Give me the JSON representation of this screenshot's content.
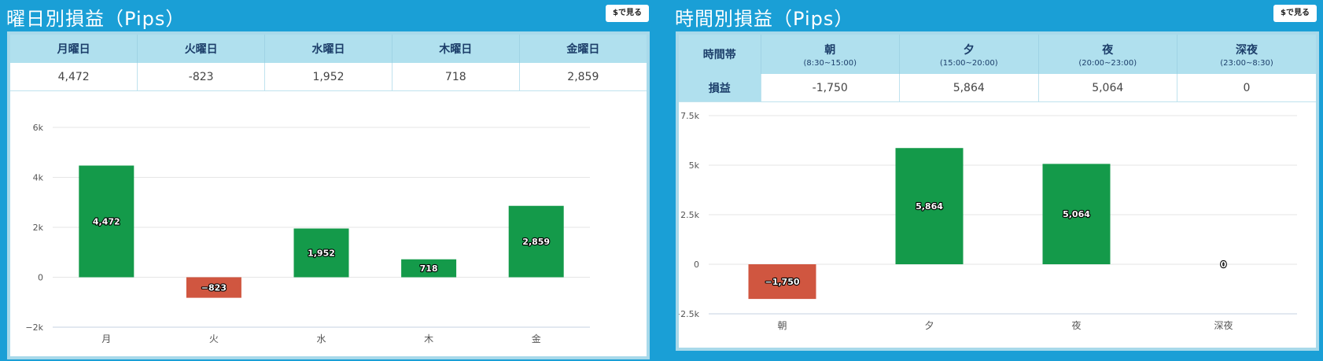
{
  "colors": {
    "positive": "#149a4a",
    "negative": "#d05640",
    "accent": "#1a9fd6"
  },
  "weekday": {
    "title": "曜日別損益（Pips）",
    "usd_button": "$で見る",
    "headers": [
      "月曜日",
      "火曜日",
      "水曜日",
      "木曜日",
      "金曜日"
    ],
    "values": [
      "4,472",
      "-823",
      "1,952",
      "718",
      "2,859"
    ]
  },
  "hourly": {
    "title": "時間別損益（Pips）",
    "usd_button": "$で見る",
    "corner_header": "時間帯",
    "row_label": "損益",
    "headers": [
      {
        "label": "朝",
        "range": "(8:30~15:00)"
      },
      {
        "label": "夕",
        "range": "(15:00~20:00)"
      },
      {
        "label": "夜",
        "range": "(20:00~23:00)"
      },
      {
        "label": "深夜",
        "range": "(23:00~8:30)"
      }
    ],
    "values": [
      "-1,750",
      "5,864",
      "5,064",
      "0"
    ]
  },
  "chart_data": [
    {
      "type": "bar",
      "categories": [
        "月",
        "火",
        "水",
        "木",
        "金"
      ],
      "values": [
        4472,
        -823,
        1952,
        718,
        2859
      ],
      "data_labels": [
        "4,472",
        "−823",
        "1,952",
        "718",
        "2,859"
      ],
      "yticks": [
        6000,
        4000,
        2000,
        0,
        -2000
      ],
      "ytick_labels": [
        "6k",
        "4k",
        "2k",
        "0",
        "−2k"
      ],
      "ylim": [
        -2000,
        6000
      ],
      "grid": true
    },
    {
      "type": "bar",
      "categories": [
        "朝",
        "夕",
        "夜",
        "深夜"
      ],
      "values": [
        -1750,
        5864,
        5064,
        0
      ],
      "data_labels": [
        "−1,750",
        "5,864",
        "5,064",
        "0"
      ],
      "yticks": [
        7500,
        5000,
        2500,
        0,
        -2500
      ],
      "ytick_labels": [
        "7.5k",
        "5k",
        "2.5k",
        "0",
        "−2.5k"
      ],
      "ylim": [
        -2500,
        7500
      ],
      "grid": true
    }
  ]
}
